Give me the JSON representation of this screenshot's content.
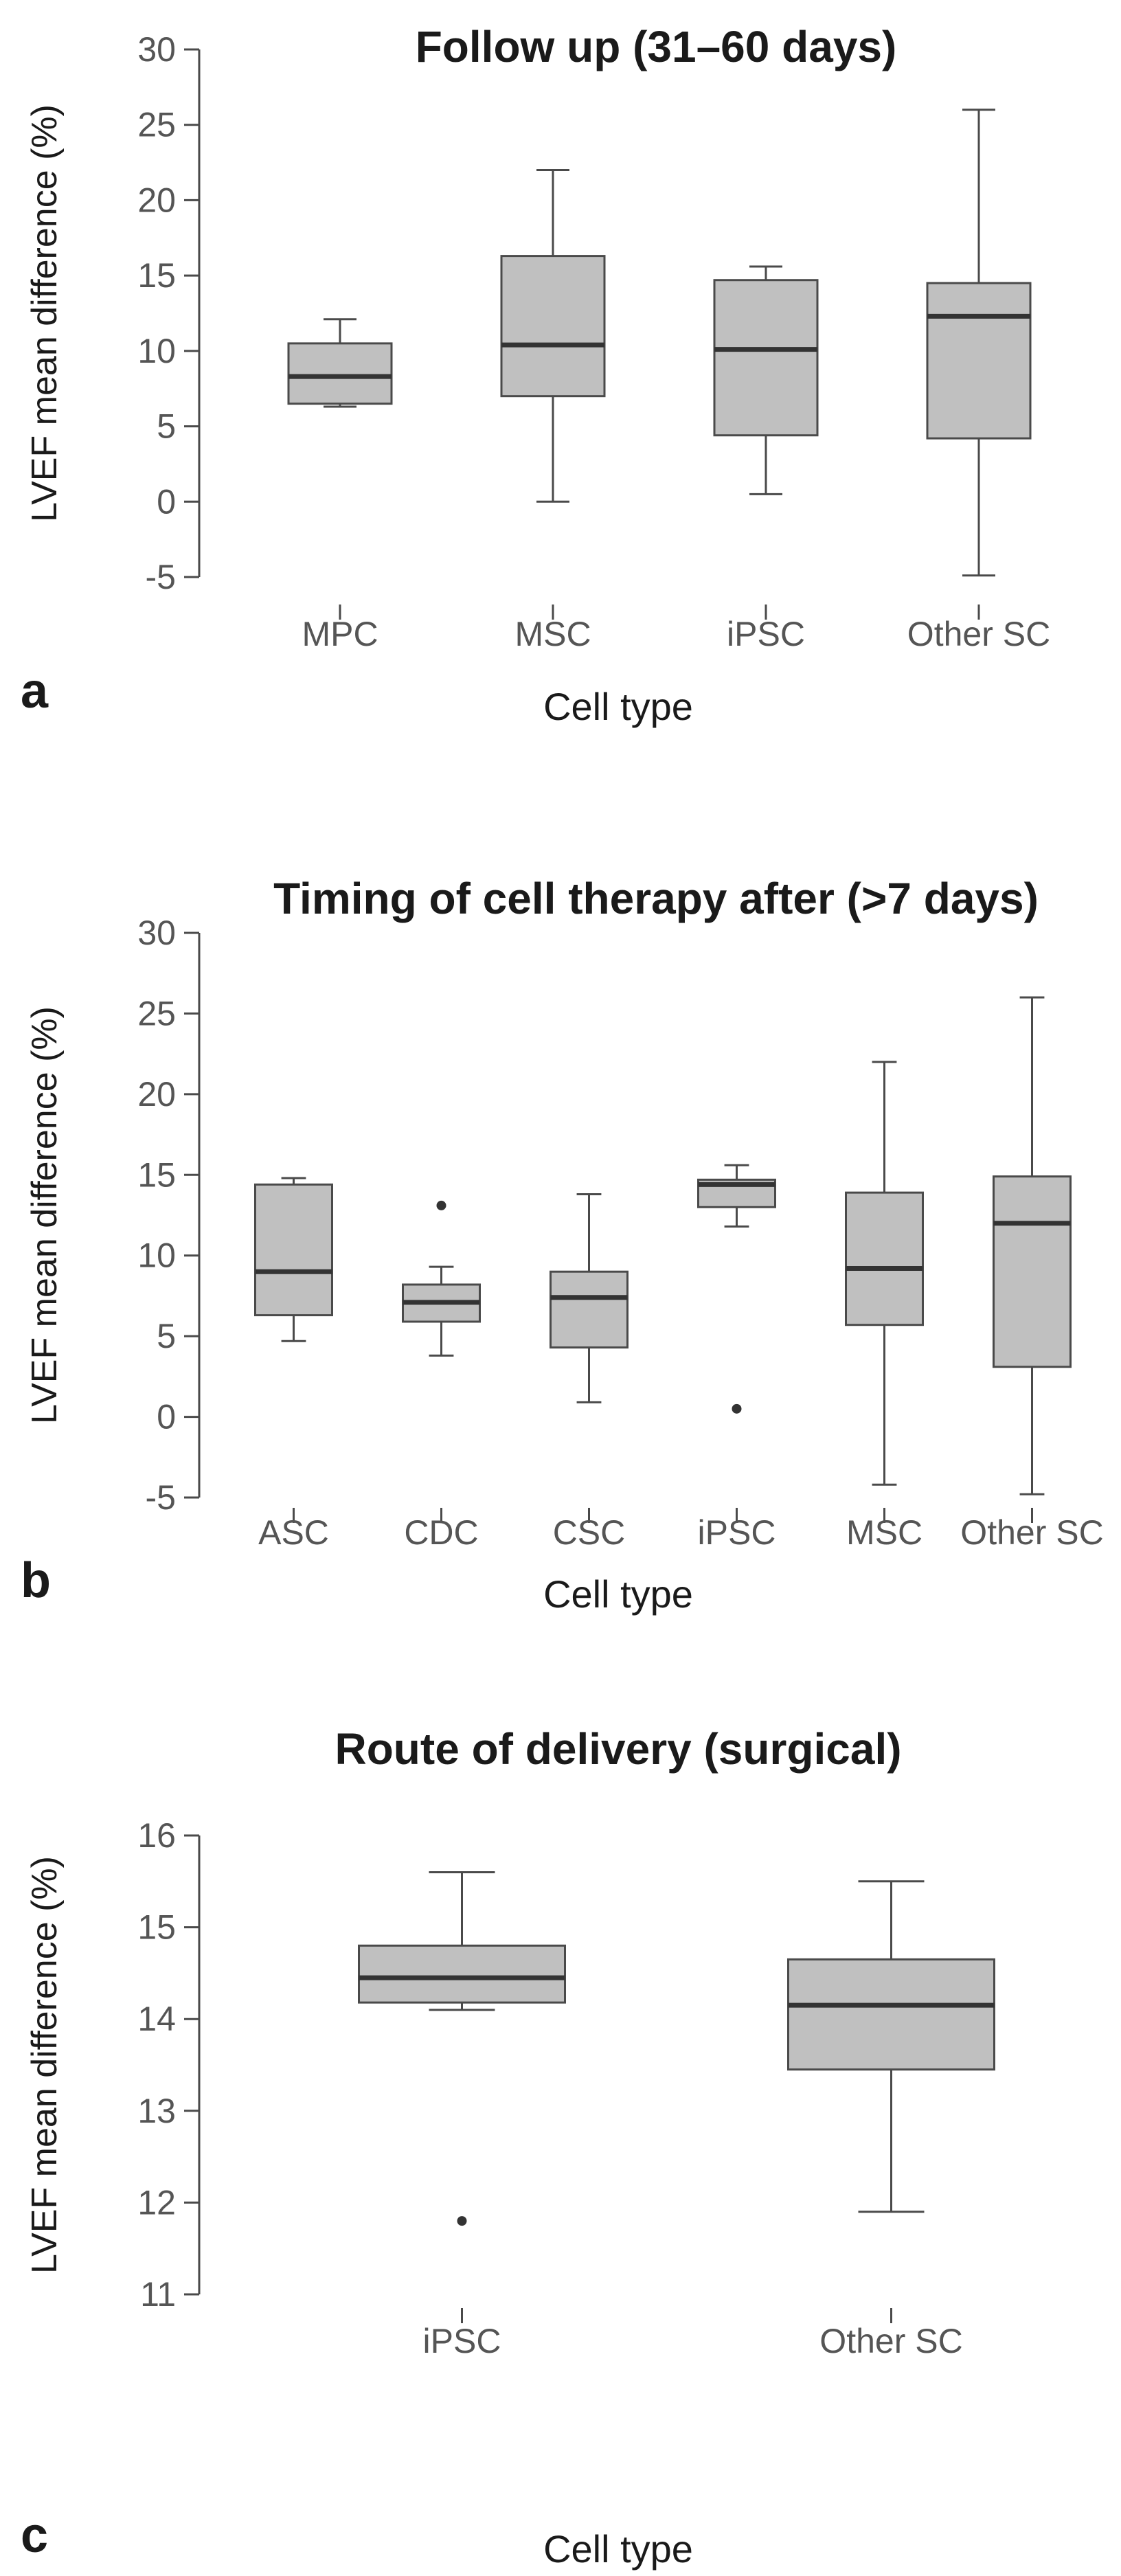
{
  "chart_data": [
    {
      "panel": "a",
      "type": "box",
      "title": "Follow up (31–60 days)",
      "xlabel": "Cell type",
      "ylabel": "LVEF mean difference (%)",
      "ylim": [
        -5,
        30
      ],
      "yticks": [
        -5,
        0,
        5,
        10,
        15,
        20,
        25,
        30
      ],
      "categories": [
        "MPC",
        "MSC",
        "iPSC",
        "Other SC"
      ],
      "boxes": [
        {
          "min": 6.3,
          "q1": 6.5,
          "median": 8.3,
          "q3": 10.5,
          "max": 12.1,
          "outliers": []
        },
        {
          "min": 0.0,
          "q1": 7.0,
          "median": 10.4,
          "q3": 16.3,
          "max": 22.0,
          "outliers": []
        },
        {
          "min": 0.5,
          "q1": 4.4,
          "median": 10.1,
          "q3": 14.7,
          "max": 15.6,
          "outliers": []
        },
        {
          "min": -4.9,
          "q1": 4.2,
          "median": 12.3,
          "q3": 14.5,
          "max": 26.0,
          "outliers": []
        }
      ]
    },
    {
      "panel": "b",
      "type": "box",
      "title": "Timing of cell therapy after (>7 days)",
      "xlabel": "Cell type",
      "ylabel": "LVEF mean difference (%)",
      "ylim": [
        -5,
        30
      ],
      "yticks": [
        -5,
        0,
        5,
        10,
        15,
        20,
        25,
        30
      ],
      "categories": [
        "ASC",
        "CDC",
        "CSC",
        "iPSC",
        "MSC",
        "Other SC"
      ],
      "boxes": [
        {
          "min": 4.7,
          "q1": 6.3,
          "median": 9.0,
          "q3": 14.4,
          "max": 14.8,
          "outliers": []
        },
        {
          "min": 3.8,
          "q1": 5.9,
          "median": 7.1,
          "q3": 8.2,
          "max": 9.3,
          "outliers": [
            13.1
          ]
        },
        {
          "min": 0.9,
          "q1": 4.3,
          "median": 7.4,
          "q3": 9.0,
          "max": 13.8,
          "outliers": []
        },
        {
          "min": 11.8,
          "q1": 13.0,
          "median": 14.4,
          "q3": 14.7,
          "max": 15.6,
          "outliers": [
            0.5
          ]
        },
        {
          "min": -4.2,
          "q1": 5.7,
          "median": 9.2,
          "q3": 13.9,
          "max": 22.0,
          "outliers": []
        },
        {
          "min": -4.8,
          "q1": 3.1,
          "median": 12.0,
          "q3": 14.9,
          "max": 26.0,
          "outliers": []
        }
      ]
    },
    {
      "panel": "c",
      "type": "box",
      "title": "Route of delivery (surgical)",
      "xlabel": "Cell type",
      "ylabel": "LVEF mean difference (%)",
      "ylim": [
        11,
        16
      ],
      "yticks": [
        11,
        12,
        13,
        14,
        15,
        16
      ],
      "categories": [
        "iPSC",
        "Other SC"
      ],
      "boxes": [
        {
          "min": 14.1,
          "q1": 14.18,
          "median": 14.45,
          "q3": 14.8,
          "max": 15.6,
          "outliers": [
            11.8
          ]
        },
        {
          "min": 11.9,
          "q1": 13.45,
          "median": 14.15,
          "q3": 14.65,
          "max": 15.5,
          "outliers": []
        }
      ]
    }
  ],
  "colors": {
    "box_fill": "#c0c0c0",
    "stroke": "#4a4a4a",
    "median": "#333333",
    "text": "#1a1a1a"
  }
}
